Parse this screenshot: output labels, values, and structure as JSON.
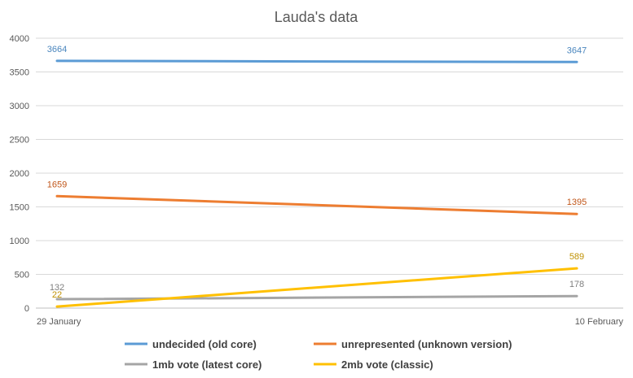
{
  "chart_data": {
    "type": "line",
    "title": "Lauda's data",
    "xlabel": "",
    "ylabel": "",
    "categories": [
      "29 January",
      "10 February"
    ],
    "ylim": [
      0,
      4000
    ],
    "yticks": [
      0,
      500,
      1000,
      1500,
      2000,
      2500,
      3000,
      3500,
      4000
    ],
    "grid": true,
    "legend_position": "bottom",
    "series": [
      {
        "name": "undecided (old core)",
        "values": [
          3664,
          3647
        ],
        "color": "#5B9BD5",
        "label_color": "#4A86BE"
      },
      {
        "name": "unrepresented (unknown version)",
        "values": [
          1659,
          1395
        ],
        "color": "#ED7D31",
        "label_color": "#C0561A"
      },
      {
        "name": "1mb vote (latest core)",
        "values": [
          132,
          178
        ],
        "color": "#A5A5A5",
        "label_color": "#7F7F7F"
      },
      {
        "name": "2mb vote (classic)",
        "values": [
          22,
          589
        ],
        "color": "#FFC000",
        "label_color": "#BF9000"
      }
    ]
  }
}
